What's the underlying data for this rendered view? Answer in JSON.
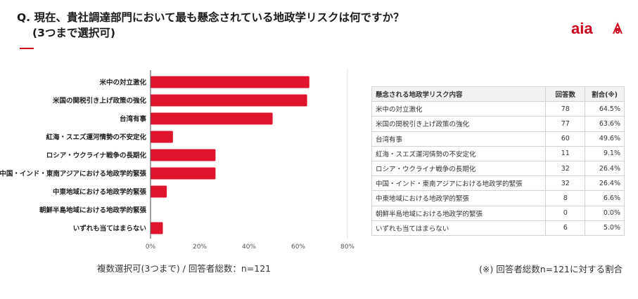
{
  "header": {
    "title_line1": "Q. 現在、貴社調達部門において最も懸念されている地政学リスクは何ですか？",
    "title_line2": "(3つまで選択可)",
    "accent_color": "#d0021b"
  },
  "logo": {
    "text": "aia",
    "icon": "aia-logo-icon",
    "color": "#d0021b"
  },
  "chart_data": {
    "type": "bar",
    "orientation": "horizontal",
    "categories": [
      "米中の対立激化",
      "米国の関税引き上げ政策の強化",
      "台湾有事",
      "紅海・スエズ運河情勢の不安定化",
      "ロシア・ウクライナ戦争の長期化",
      "中国・インド・東南アジアにおける地政学的緊張",
      "中東地域における地政学的緊張",
      "朝鮮半島地域における地政学的緊張",
      "いずれも当てはまらない"
    ],
    "values": [
      64.5,
      63.6,
      49.6,
      9.1,
      26.4,
      26.4,
      6.6,
      0.0,
      5.0
    ],
    "xlim": [
      0,
      80
    ],
    "xticks": [
      "0%",
      "20%",
      "40%",
      "60%",
      "80%"
    ],
    "bar_color": "#e0142d",
    "grid": false
  },
  "footnotes": {
    "left": "複数選択可(3つまで) / 回答者総数：n=121",
    "right": "(※) 回答者総数n=121に対する割合"
  },
  "table": {
    "headers": [
      "懸念される地政学リスク内容",
      "回答数",
      "割合(※)"
    ],
    "rows": [
      [
        "米中の対立激化",
        "78",
        "64.5%"
      ],
      [
        "米国の関税引き上げ政策の強化",
        "77",
        "63.6%"
      ],
      [
        "台湾有事",
        "60",
        "49.6%"
      ],
      [
        "紅海・スエズ運河情勢の不安定化",
        "11",
        "9.1%"
      ],
      [
        "ロシア・ウクライナ戦争の長期化",
        "32",
        "26.4%"
      ],
      [
        "中国・インド・東南アジアにおける地政学的緊張",
        "32",
        "26.4%"
      ],
      [
        "中東地域における地政学的緊張",
        "8",
        "6.6%"
      ],
      [
        "朝鮮半島地域における地政学的緊張",
        "0",
        "0.0%"
      ],
      [
        "いずれも当てはまらない",
        "6",
        "5.0%"
      ]
    ]
  }
}
